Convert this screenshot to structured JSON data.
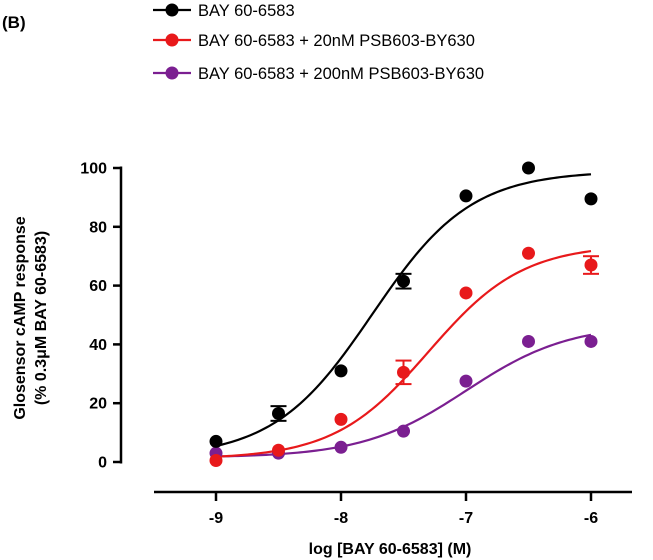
{
  "panel_label": "(B)",
  "chart_data": {
    "type": "scatter",
    "title": "",
    "xlabel": "log [BAY 60-6583] (M)",
    "ylabel_line1": "Glosensor cAMP response",
    "ylabel_line2": "(% 0.3μM BAY 60-6583)",
    "xlim": [
      -9.5,
      -5.6
    ],
    "ylim": [
      0,
      100
    ],
    "x_ticks": [
      -9,
      -8,
      -7,
      -6
    ],
    "x_tick_labels": [
      "-9",
      "-8",
      "-7",
      "-6"
    ],
    "y_ticks": [
      0,
      20,
      40,
      60,
      80,
      100
    ],
    "y_tick_labels": [
      "0",
      "20",
      "40",
      "60",
      "80",
      "100"
    ],
    "legend_position": "top-left",
    "series": [
      {
        "name": "BAY 60-6583",
        "color": "#000000",
        "x": [
          -9,
          -8.5,
          -8,
          -7.5,
          -7,
          -6.5,
          -6
        ],
        "y": [
          7,
          16.5,
          31,
          61.5,
          90.5,
          100,
          89.5
        ],
        "error": [
          0,
          2.5,
          0,
          2.5,
          0,
          0,
          0
        ],
        "fit": {
          "bottom": 1.5,
          "top": 99,
          "logEC50": -7.75,
          "hill": 1.1
        }
      },
      {
        "name": "BAY 60-6583 + 20nM PSB603-BY630",
        "color": "#e8191b",
        "x": [
          -9,
          -8.5,
          -8,
          -7.5,
          -7,
          -6.5,
          -6
        ],
        "y": [
          0.5,
          4,
          14.5,
          30.5,
          57.5,
          71,
          67
        ],
        "error": [
          0,
          0,
          0,
          4,
          0,
          0,
          3
        ],
        "fit": {
          "bottom": 1,
          "top": 74,
          "logEC50": -7.3,
          "hill": 1.15
        }
      },
      {
        "name": "BAY 60-6583 + 200nM PSB603-BY630",
        "color": "#7b1f91",
        "x": [
          -9,
          -8.5,
          -8,
          -7.5,
          -7,
          -6.5,
          -6
        ],
        "y": [
          3,
          3,
          5,
          10.5,
          27.5,
          41,
          41
        ],
        "error": [
          0,
          0,
          0,
          0,
          0,
          0,
          0
        ],
        "fit": {
          "bottom": 1.5,
          "top": 47,
          "logEC50": -7.0,
          "hill": 1.05
        }
      }
    ]
  }
}
